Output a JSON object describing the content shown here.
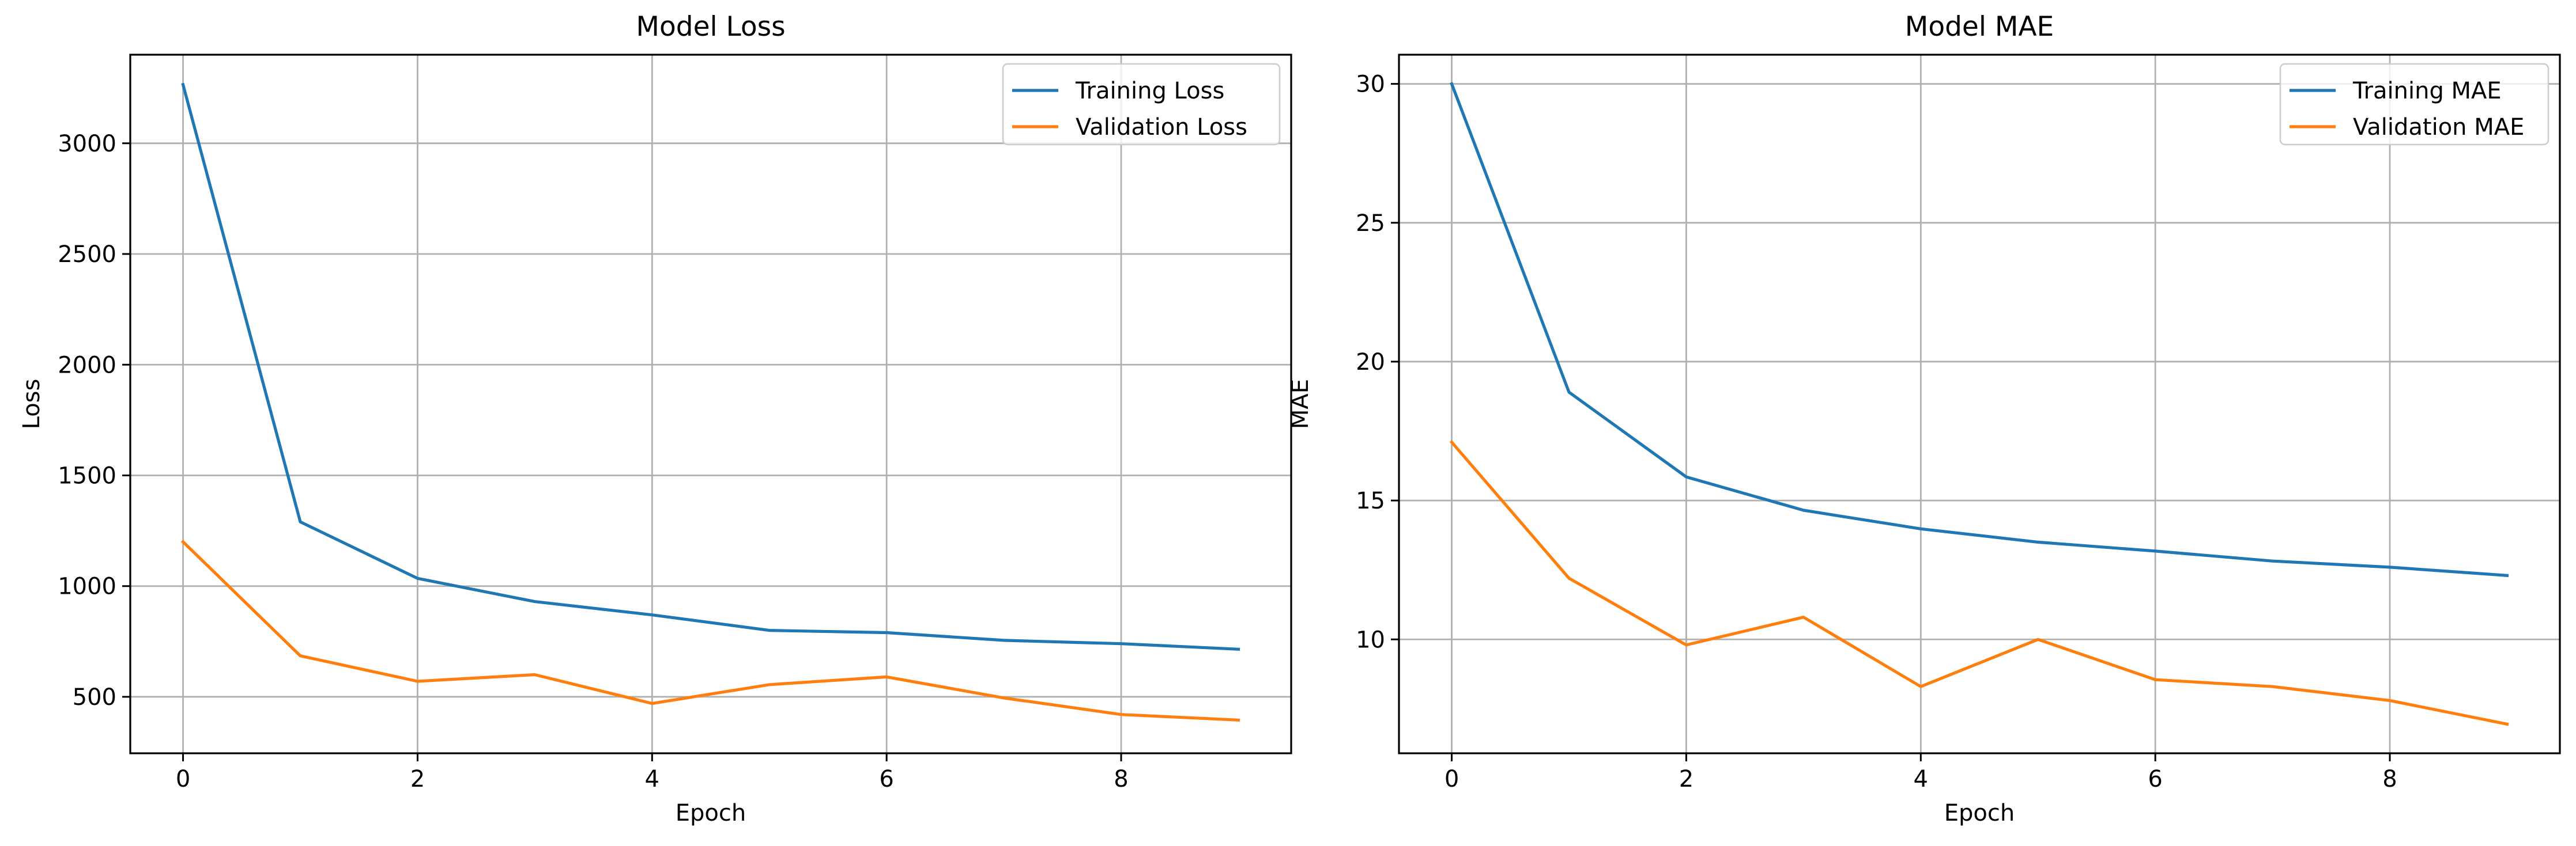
{
  "chart_data": [
    {
      "type": "line",
      "title": "Model Loss",
      "xlabel": "Epoch",
      "ylabel": "Loss",
      "xlim": [
        -0.45,
        9.45
      ],
      "ylim": [
        245,
        3400
      ],
      "xticks": [
        0,
        2,
        4,
        6,
        8
      ],
      "yticks": [
        500,
        1000,
        1500,
        2000,
        2500,
        3000
      ],
      "grid": true,
      "legend": "top-right",
      "x": [
        0,
        1,
        2,
        3,
        4,
        5,
        6,
        7,
        8,
        9
      ],
      "series": [
        {
          "name": "Training Loss",
          "color": "#1f77b4",
          "values": [
            3265,
            1290,
            1035,
            930,
            870,
            800,
            790,
            755,
            740,
            715
          ]
        },
        {
          "name": "Validation Loss",
          "color": "#ff7f0e",
          "values": [
            1200,
            685,
            570,
            600,
            470,
            555,
            590,
            495,
            420,
            395
          ]
        }
      ]
    },
    {
      "type": "line",
      "title": "Model MAE",
      "xlabel": "Epoch",
      "ylabel": "MAE",
      "xlim": [
        -0.45,
        9.45
      ],
      "ylim": [
        5.9,
        31.05
      ],
      "xticks": [
        0,
        2,
        4,
        6,
        8
      ],
      "yticks": [
        10,
        15,
        20,
        25,
        30
      ],
      "grid": true,
      "legend": "top-right",
      "x": [
        0,
        1,
        2,
        3,
        4,
        5,
        6,
        7,
        8,
        9
      ],
      "series": [
        {
          "name": "Training MAE",
          "color": "#1f77b4",
          "values": [
            30.0,
            18.9,
            15.85,
            14.65,
            13.98,
            13.5,
            13.18,
            12.82,
            12.6,
            12.3
          ]
        },
        {
          "name": "Validation MAE",
          "color": "#ff7f0e",
          "values": [
            17.1,
            12.2,
            9.8,
            10.8,
            8.3,
            10.0,
            8.55,
            8.3,
            7.8,
            6.95
          ]
        }
      ]
    }
  ]
}
